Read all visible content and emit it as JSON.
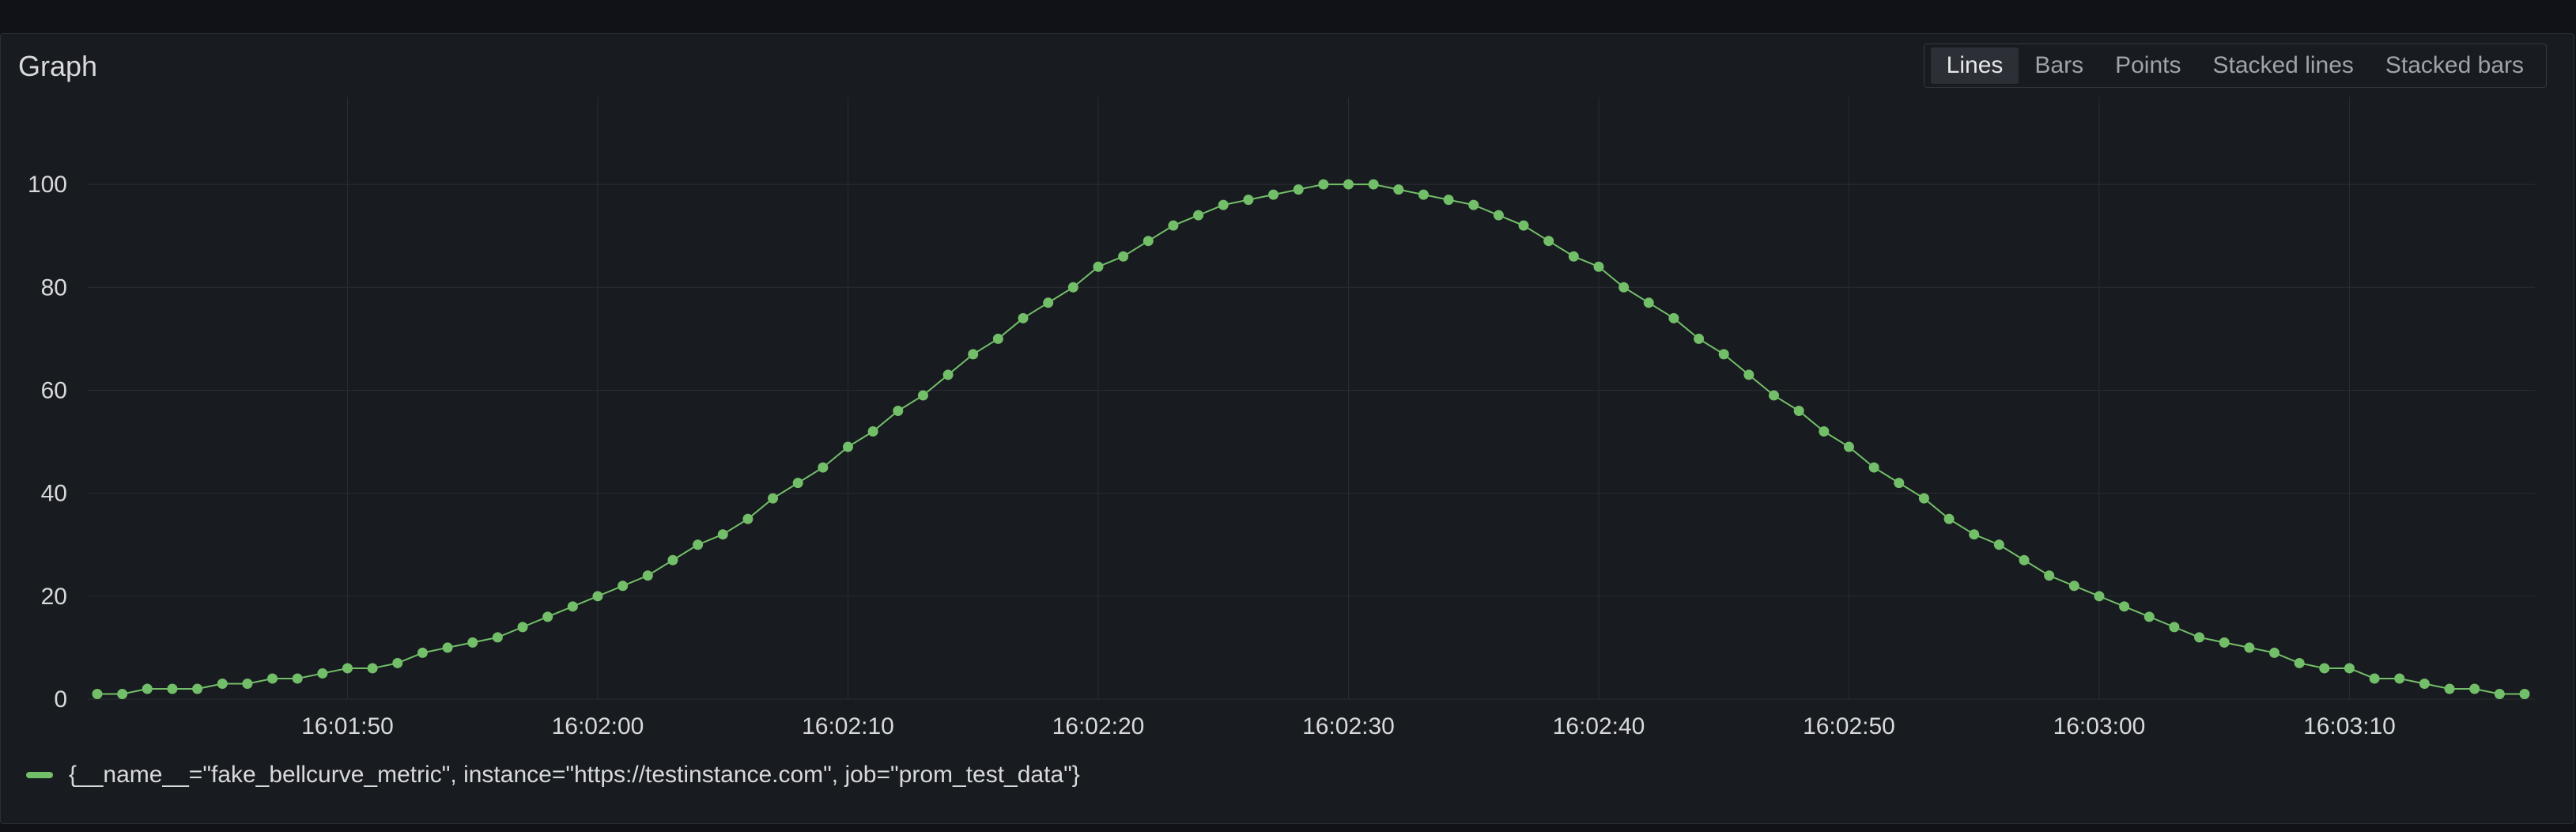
{
  "panel": {
    "title": "Graph",
    "modes": [
      "Lines",
      "Bars",
      "Points",
      "Stacked lines",
      "Stacked bars"
    ],
    "active_mode": "Lines"
  },
  "colors": {
    "background": "#111217",
    "panel": "#181b1f",
    "grid": "#2a2d33",
    "series": "#73bf69",
    "text": "#d8d9da"
  },
  "legend": {
    "label": "{__name__=\"fake_bellcurve_metric\", instance=\"https://testinstance.com\", job=\"prom_test_data\"}"
  },
  "chart_data": {
    "type": "line",
    "title": "",
    "xlabel": "",
    "ylabel": "",
    "ylim": [
      0,
      110
    ],
    "y_ticks": [
      0,
      20,
      40,
      60,
      80,
      100
    ],
    "x_start": "16:01:40",
    "x_step_seconds": 1,
    "x_ticks": [
      "16:01:50",
      "16:02:00",
      "16:02:10",
      "16:02:20",
      "16:02:30",
      "16:02:40",
      "16:02:50",
      "16:03:00",
      "16:03:10"
    ],
    "grid": true,
    "legend_position": "bottom-left",
    "series": [
      {
        "name": "{__name__=\"fake_bellcurve_metric\", instance=\"https://testinstance.com\", job=\"prom_test_data\"}",
        "values": [
          1,
          1,
          2,
          2,
          2,
          3,
          3,
          4,
          4,
          5,
          6,
          6,
          7,
          9,
          10,
          11,
          12,
          14,
          16,
          18,
          20,
          22,
          24,
          27,
          30,
          32,
          35,
          39,
          42,
          45,
          49,
          52,
          56,
          59,
          63,
          67,
          70,
          74,
          77,
          80,
          84,
          86,
          89,
          92,
          94,
          96,
          97,
          98,
          99,
          100,
          100,
          100,
          99,
          98,
          97,
          96,
          94,
          92,
          89,
          86,
          84,
          80,
          77,
          74,
          70,
          67,
          63,
          59,
          56,
          52,
          49,
          45,
          42,
          39,
          35,
          32,
          30,
          27,
          24,
          22,
          20,
          18,
          16,
          14,
          12,
          11,
          10,
          9,
          7,
          6,
          6,
          4,
          4,
          3,
          2,
          2,
          1,
          1
        ]
      }
    ]
  }
}
